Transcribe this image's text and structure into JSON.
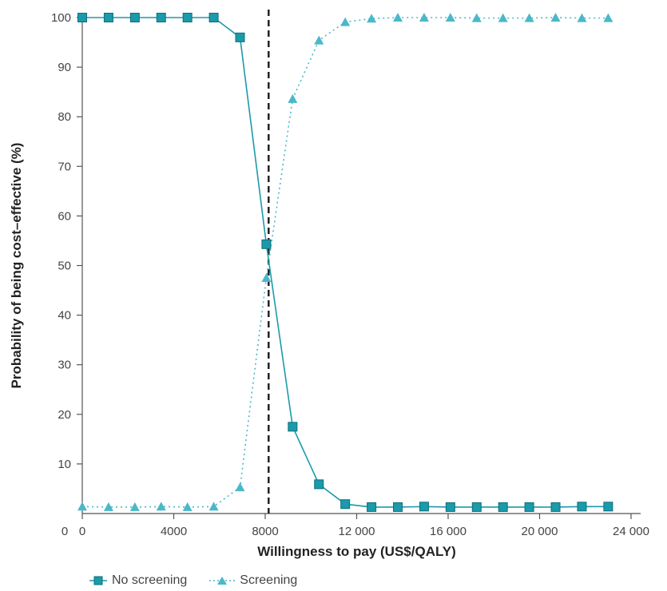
{
  "chart_data": {
    "type": "line",
    "xlabel": "Willingness to pay (US$/QALY)",
    "ylabel": "Probability of being cost–effective (%)",
    "xlim": [
      0,
      24000
    ],
    "ylim": [
      0,
      100
    ],
    "xticks": [
      0,
      4000,
      8000,
      12000,
      16000,
      20000,
      24000
    ],
    "xtick_labels": [
      "0",
      "4000",
      "8000",
      "12 000",
      "16 000",
      "20 000",
      "24 000"
    ],
    "yticks": [
      10,
      20,
      30,
      40,
      50,
      60,
      70,
      80,
      90,
      100
    ],
    "ytick_labels": [
      "10",
      "20",
      "30",
      "40",
      "50",
      "60",
      "70",
      "80",
      "90",
      "100"
    ],
    "grid": false,
    "threshold_x": 8150,
    "x": [
      0,
      1150,
      2300,
      3450,
      4600,
      5750,
      6900,
      8050,
      9200,
      10350,
      11500,
      12650,
      13800,
      14950,
      16100,
      17250,
      18400,
      19550,
      20700,
      21850,
      23000
    ],
    "series": [
      {
        "name": "No screening",
        "color": "#1a9aaa",
        "line_style": "solid",
        "marker": "square",
        "values": [
          100,
          100,
          100,
          100,
          100,
          100,
          96,
          54.3,
          17.5,
          5.9,
          1.9,
          1.3,
          1.3,
          1.4,
          1.3,
          1.3,
          1.3,
          1.3,
          1.3,
          1.4,
          1.4
        ]
      },
      {
        "name": "Screening",
        "color": "#4ab8c8",
        "line_style": "dotted",
        "marker": "triangle",
        "values": [
          1.4,
          1.3,
          1.3,
          1.4,
          1.3,
          1.4,
          5.3,
          47.5,
          83.6,
          95.4,
          99.1,
          99.8,
          100,
          100,
          100,
          99.9,
          99.9,
          99.9,
          100,
          99.9,
          99.9
        ]
      }
    ],
    "legend_position": "bottom-left"
  }
}
